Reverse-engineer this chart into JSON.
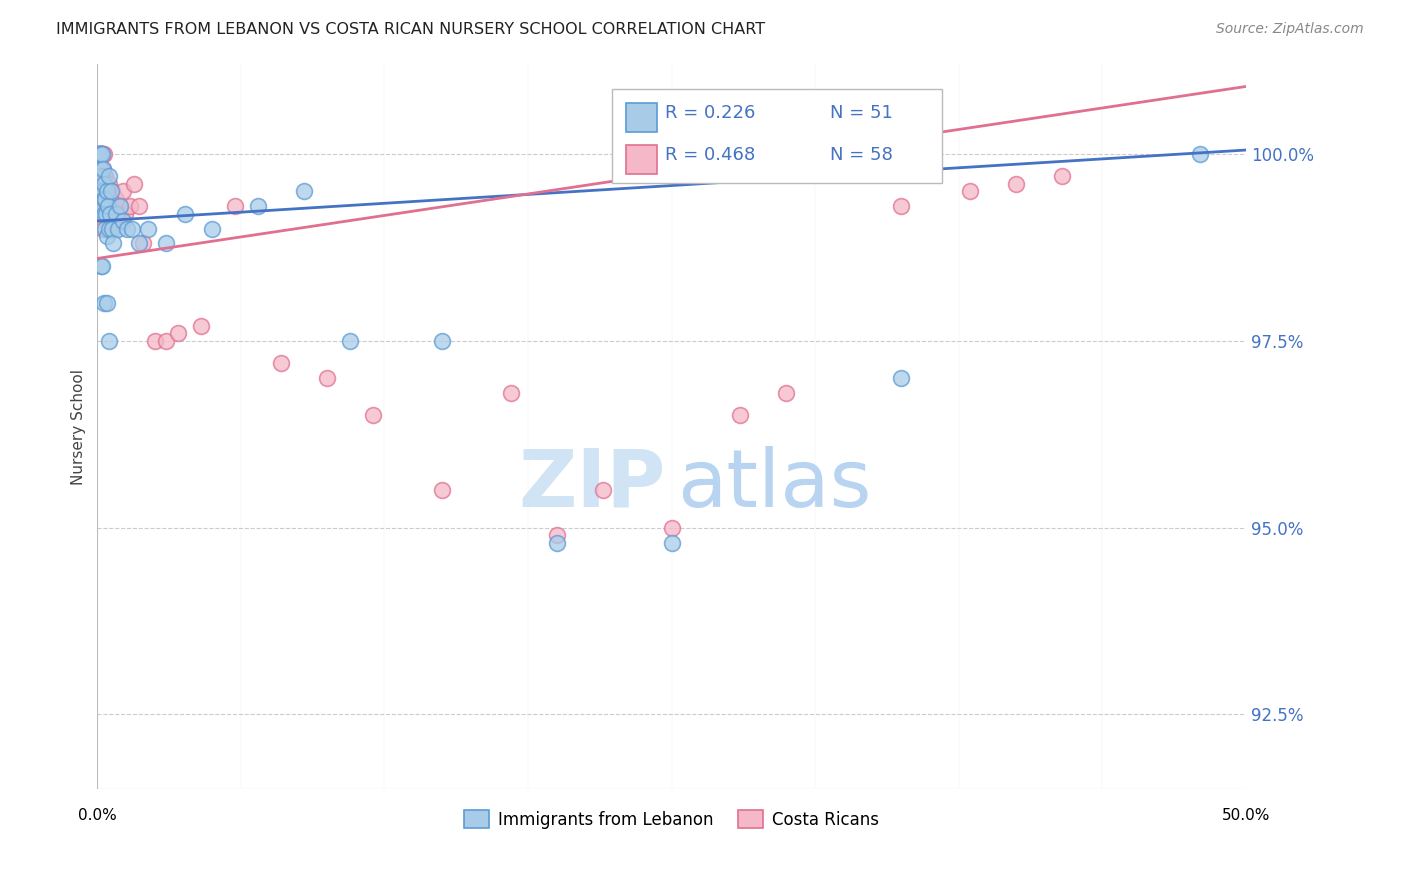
{
  "title": "IMMIGRANTS FROM LEBANON VS COSTA RICAN NURSERY SCHOOL CORRELATION CHART",
  "source": "Source: ZipAtlas.com",
  "ylabel": "Nursery School",
  "ytick_values": [
    100.0,
    97.5,
    95.0,
    92.5
  ],
  "xlim": [
    0.0,
    50.0
  ],
  "ylim": [
    91.5,
    101.2
  ],
  "legend_label_blue": "Immigrants from Lebanon",
  "legend_label_pink": "Costa Ricans",
  "blue_color": "#a8cce8",
  "pink_color": "#f4b8c8",
  "blue_edge_color": "#5b9bd5",
  "pink_edge_color": "#e07090",
  "blue_line_color": "#4472c4",
  "pink_line_color": "#d9536a",
  "label_color": "#4472c4",
  "watermark_zip_color": "#d0e4f5",
  "watermark_atlas_color": "#b8d4f0",
  "blue_scatter_x": [
    0.05,
    0.08,
    0.1,
    0.12,
    0.15,
    0.15,
    0.18,
    0.2,
    0.2,
    0.22,
    0.25,
    0.25,
    0.28,
    0.3,
    0.3,
    0.35,
    0.35,
    0.38,
    0.4,
    0.4,
    0.45,
    0.5,
    0.5,
    0.55,
    0.6,
    0.65,
    0.7,
    0.8,
    0.9,
    1.0,
    1.1,
    1.3,
    1.5,
    1.8,
    2.2,
    3.0,
    3.8,
    5.0,
    7.0,
    9.0,
    11.0,
    15.0,
    20.0,
    25.0,
    35.0,
    48.0,
    0.15,
    0.2,
    0.3,
    0.4,
    0.5
  ],
  "blue_scatter_y": [
    100.0,
    100.0,
    100.0,
    100.0,
    100.0,
    99.8,
    99.7,
    99.5,
    100.0,
    99.3,
    99.8,
    99.5,
    99.6,
    99.4,
    99.2,
    99.4,
    99.0,
    99.2,
    98.9,
    99.5,
    99.3,
    99.0,
    99.7,
    99.2,
    99.5,
    99.0,
    98.8,
    99.2,
    99.0,
    99.3,
    99.1,
    99.0,
    99.0,
    98.8,
    99.0,
    98.8,
    99.2,
    99.0,
    99.3,
    99.5,
    97.5,
    97.5,
    94.8,
    94.8,
    97.0,
    100.0,
    98.5,
    98.5,
    98.0,
    98.0,
    97.5
  ],
  "pink_scatter_x": [
    0.05,
    0.08,
    0.1,
    0.1,
    0.12,
    0.15,
    0.15,
    0.18,
    0.2,
    0.2,
    0.22,
    0.25,
    0.25,
    0.28,
    0.3,
    0.3,
    0.3,
    0.35,
    0.35,
    0.38,
    0.4,
    0.4,
    0.45,
    0.5,
    0.5,
    0.55,
    0.6,
    0.65,
    0.7,
    0.8,
    0.9,
    1.0,
    1.1,
    1.2,
    1.4,
    1.6,
    1.8,
    2.0,
    2.5,
    3.0,
    3.5,
    4.5,
    6.0,
    8.0,
    10.0,
    12.0,
    15.0,
    18.0,
    20.0,
    22.0,
    25.0,
    28.0,
    30.0,
    35.0,
    38.0,
    40.0,
    42.0,
    0.25
  ],
  "pink_scatter_y": [
    100.0,
    100.0,
    100.0,
    100.0,
    100.0,
    100.0,
    100.0,
    100.0,
    100.0,
    100.0,
    100.0,
    100.0,
    99.8,
    99.6,
    100.0,
    99.7,
    99.5,
    99.7,
    99.5,
    99.3,
    99.5,
    99.3,
    99.5,
    99.6,
    99.3,
    99.4,
    99.3,
    99.5,
    99.1,
    99.4,
    99.2,
    99.3,
    99.5,
    99.2,
    99.3,
    99.6,
    99.3,
    98.8,
    97.5,
    97.5,
    97.6,
    97.7,
    99.3,
    97.2,
    97.0,
    96.5,
    95.5,
    96.8,
    94.9,
    95.5,
    95.0,
    96.5,
    96.8,
    99.3,
    99.5,
    99.6,
    99.7,
    99.0
  ]
}
